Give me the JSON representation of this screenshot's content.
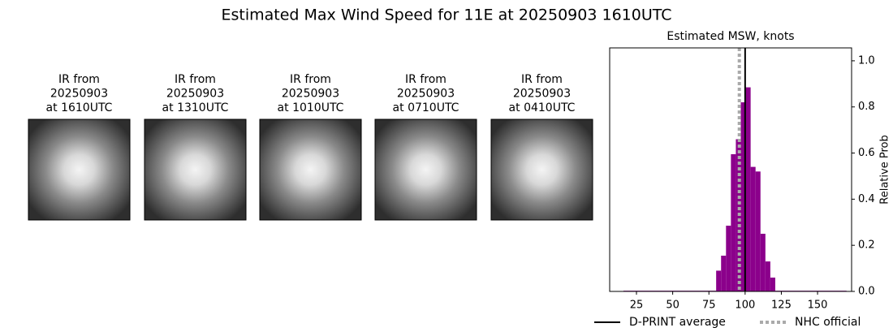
{
  "title": "Estimated Max Wind Speed for 11E at 20250903 1610UTC",
  "images": [
    {
      "label_lines": [
        "IR from",
        "20250903",
        "at 1610UTC"
      ]
    },
    {
      "label_lines": [
        "IR from",
        "20250903",
        "at 1310UTC"
      ]
    },
    {
      "label_lines": [
        "IR from",
        "20250903",
        "at 1010UTC"
      ]
    },
    {
      "label_lines": [
        "IR from",
        "20250903",
        "at 0710UTC"
      ]
    },
    {
      "label_lines": [
        "IR from",
        "20250903",
        "at 0410UTC"
      ]
    }
  ],
  "chart_data": {
    "type": "histogram",
    "title": "Estimated MSW, knots",
    "y_label": "Relative Prob",
    "bins": [
      16,
      80,
      83.4,
      86.8,
      90.2,
      93.6,
      97,
      100.4,
      103.8,
      107.2,
      110.6,
      114,
      117.4,
      120.8,
      170
    ],
    "values": [
      0.003,
      0.09,
      0.155,
      0.285,
      0.595,
      0.66,
      0.82,
      0.885,
      0.54,
      0.52,
      0.25,
      0.13,
      0.06,
      0.003
    ],
    "color": "#8b008b",
    "xlim": [
      6.5,
      173.5
    ],
    "ylim": [
      0,
      1.056
    ],
    "xticks": [
      25,
      50,
      75,
      100,
      125,
      150
    ],
    "yticks": [
      {
        "value": 0,
        "label": "0.0"
      },
      {
        "value": 0.2,
        "label": "0.2"
      },
      {
        "value": 0.4,
        "label": "0.4"
      },
      {
        "value": 0.6,
        "label": "0.6"
      },
      {
        "value": 0.8,
        "label": "0.8"
      },
      {
        "value": 1,
        "label": "1.0"
      }
    ],
    "lines": [
      {
        "name": "D-PRINT average",
        "value": 100,
        "color": "#000000",
        "style": "solid"
      },
      {
        "name": "NHC official",
        "value": 96,
        "color": "#aaaaaa",
        "style": "dotted"
      }
    ]
  }
}
